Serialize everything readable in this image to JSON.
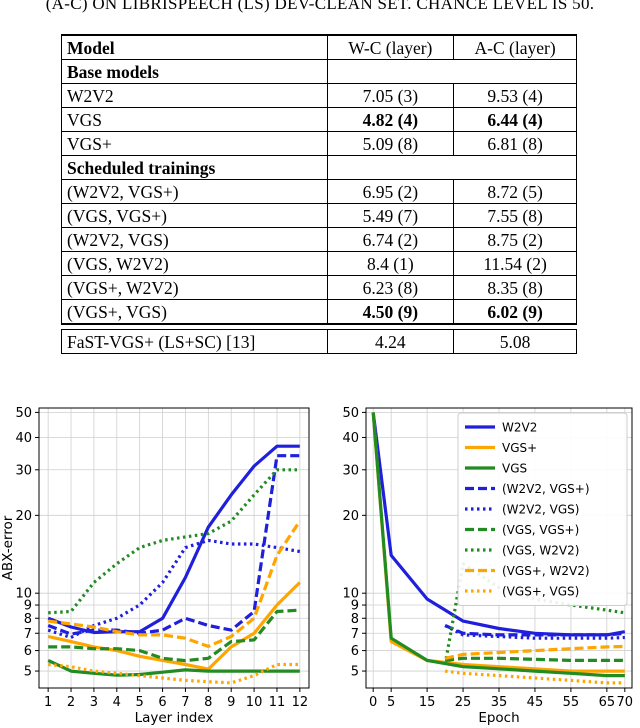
{
  "caption": "(A-C) ON LIBRISPEECH (LS) DEV-CLEAN SET. CHANCE LEVEL IS 50.",
  "table": {
    "headers": [
      "Model",
      "W-C (layer)",
      "A-C (layer)"
    ],
    "sections": [
      {
        "title": "Base models",
        "rows": [
          {
            "model": "W2V2",
            "wc": "7.05 (3)",
            "ac": "9.53 (4)",
            "bold": false
          },
          {
            "model": "VGS",
            "wc": "4.82 (4)",
            "ac": "6.44 (4)",
            "bold": true
          },
          {
            "model": "VGS+",
            "wc": "5.09 (8)",
            "ac": "6.81 (8)",
            "bold": false
          }
        ]
      },
      {
        "title": "Scheduled trainings",
        "rows": [
          {
            "model": "(W2V2, VGS+)",
            "wc": "6.95 (2)",
            "ac": "8.72 (5)",
            "bold": false
          },
          {
            "model": "(VGS, VGS+)",
            "wc": "5.49 (7)",
            "ac": "7.55 (8)",
            "bold": false
          },
          {
            "model": "(W2V2, VGS)",
            "wc": "6.74 (2)",
            "ac": "8.75 (2)",
            "bold": false
          },
          {
            "model": "(VGS, W2V2)",
            "wc": "8.4 (1)",
            "ac": "11.54 (2)",
            "bold": false
          },
          {
            "model": "(VGS+, W2V2)",
            "wc": "6.23 (8)",
            "ac": "8.35 (8)",
            "bold": false
          },
          {
            "model": "(VGS+, VGS)",
            "wc": "4.50 (9)",
            "ac": "6.02 (9)",
            "bold": true
          }
        ]
      }
    ],
    "reference": {
      "model": "FaST-VGS+ (LS+SC) [13]",
      "wc": "4.24",
      "ac": "5.08"
    }
  },
  "chart_data": [
    {
      "type": "line",
      "xlabel": "Layer index",
      "ylabel": "ABX-error",
      "scale_y": "log",
      "ylim": [
        4.3,
        52
      ],
      "xlim": [
        0.6,
        12.4
      ],
      "xticks": [
        "1",
        "2",
        "3",
        "4",
        "5",
        "6",
        "7",
        "8",
        "9",
        "10",
        "11",
        "12"
      ],
      "yticks": [
        "5",
        "6",
        "7",
        "8",
        "9",
        "10",
        "20",
        "30",
        "40",
        "50"
      ],
      "grid": true,
      "x": [
        1,
        2,
        3,
        4,
        5,
        6,
        7,
        8,
        9,
        10,
        11,
        12
      ],
      "series": [
        {
          "name": "W2V2",
          "color": "#1f1fdc",
          "dash": "solid",
          "values": [
            8.0,
            7.4,
            7.05,
            7.1,
            7.1,
            8.0,
            11.5,
            18.0,
            24.0,
            31.0,
            37.0,
            37.0
          ]
        },
        {
          "name": "VGS+",
          "color": "#ffa500",
          "dash": "solid",
          "values": [
            6.8,
            6.5,
            6.2,
            6.0,
            5.7,
            5.5,
            5.3,
            5.09,
            6.2,
            7.0,
            9.0,
            11.0
          ]
        },
        {
          "name": "VGS",
          "color": "#228b22",
          "dash": "solid",
          "values": [
            5.5,
            5.0,
            4.9,
            4.82,
            4.85,
            4.95,
            5.05,
            5.0,
            5.0,
            5.0,
            5.0,
            5.0
          ]
        },
        {
          "name": "(W2V2, VGS+)",
          "color": "#1f1fdc",
          "dash": "dash",
          "values": [
            7.5,
            6.95,
            7.2,
            7.2,
            7.0,
            7.2,
            8.0,
            7.5,
            7.2,
            8.5,
            34.0,
            34.0
          ]
        },
        {
          "name": "(W2V2, VGS)",
          "color": "#1f1fdc",
          "dash": "dot",
          "values": [
            7.2,
            6.74,
            7.5,
            8.0,
            9.0,
            11.0,
            15.0,
            16.0,
            15.5,
            15.5,
            15.0,
            14.5
          ]
        },
        {
          "name": "(VGS, VGS+)",
          "color": "#228b22",
          "dash": "dash",
          "values": [
            6.2,
            6.2,
            6.1,
            6.1,
            6.0,
            5.6,
            5.49,
            5.6,
            6.5,
            6.6,
            8.5,
            8.6
          ]
        },
        {
          "name": "(VGS, W2V2)",
          "color": "#228b22",
          "dash": "dot",
          "values": [
            8.4,
            8.5,
            11.0,
            13.0,
            15.0,
            16.0,
            16.5,
            17.0,
            19.0,
            24.0,
            30.0,
            30.0
          ]
        },
        {
          "name": "(VGS+, W2V2)",
          "color": "#ffa500",
          "dash": "dash",
          "values": [
            7.8,
            7.6,
            7.4,
            7.1,
            6.9,
            6.9,
            6.7,
            6.23,
            6.8,
            8.0,
            14.0,
            19.0
          ]
        },
        {
          "name": "(VGS+, VGS)",
          "color": "#ffa500",
          "dash": "dot",
          "values": [
            5.3,
            5.2,
            5.0,
            4.9,
            4.8,
            4.7,
            4.6,
            4.55,
            4.5,
            4.8,
            5.3,
            5.3
          ]
        }
      ]
    },
    {
      "type": "line",
      "xlabel": "Epoch",
      "scale_y": "log",
      "ylim": [
        4.3,
        52
      ],
      "xlim": [
        -2,
        72
      ],
      "xticks": [
        "0",
        "5",
        "15",
        "25",
        "35",
        "45",
        "55",
        "65",
        "70"
      ],
      "xtick_values": [
        0,
        5,
        15,
        25,
        35,
        45,
        55,
        65,
        70
      ],
      "yticks": [
        "5",
        "6",
        "7",
        "8",
        "9",
        "10",
        "20",
        "30",
        "40",
        "50"
      ],
      "grid": true,
      "legend_position": "top-right",
      "series": [
        {
          "name": "W2V2",
          "color": "#1f1fdc",
          "dash": "solid",
          "x": [
            0,
            5,
            15,
            25,
            35,
            45,
            55,
            65,
            70
          ],
          "values": [
            50,
            14,
            9.5,
            7.8,
            7.3,
            7.0,
            6.9,
            6.9,
            7.1
          ]
        },
        {
          "name": "VGS+",
          "color": "#ffa500",
          "dash": "solid",
          "x": [
            0,
            5,
            15,
            25,
            35,
            45,
            55,
            65,
            70
          ],
          "values": [
            50,
            6.5,
            5.5,
            5.3,
            5.2,
            5.1,
            5.0,
            5.0,
            5.0
          ]
        },
        {
          "name": "VGS",
          "color": "#228b22",
          "dash": "solid",
          "x": [
            0,
            5,
            15,
            25,
            35,
            45,
            55,
            65,
            70
          ],
          "values": [
            50,
            6.7,
            5.5,
            5.2,
            5.1,
            5.0,
            4.9,
            4.8,
            4.8
          ]
        },
        {
          "name": "(W2V2, VGS+)",
          "color": "#1f1fdc",
          "dash": "dash",
          "x": [
            20,
            25,
            35,
            45,
            55,
            65,
            70
          ],
          "values": [
            7.5,
            7.0,
            6.9,
            6.9,
            6.9,
            6.9,
            7.0
          ]
        },
        {
          "name": "(W2V2, VGS)",
          "color": "#1f1fdc",
          "dash": "dot",
          "x": [
            20,
            25,
            35,
            45,
            55,
            65,
            70
          ],
          "values": [
            7.5,
            6.9,
            6.8,
            6.7,
            6.7,
            6.7,
            6.74
          ]
        },
        {
          "name": "(VGS, VGS+)",
          "color": "#228b22",
          "dash": "dash",
          "x": [
            20,
            25,
            35,
            45,
            55,
            65,
            70
          ],
          "values": [
            5.5,
            5.6,
            5.6,
            5.55,
            5.5,
            5.5,
            5.5
          ]
        },
        {
          "name": "(VGS, W2V2)",
          "color": "#228b22",
          "dash": "dot",
          "x": [
            20,
            25,
            35,
            45,
            55,
            65,
            70
          ],
          "values": [
            5.3,
            13.0,
            10.5,
            9.5,
            9.0,
            8.6,
            8.4
          ]
        },
        {
          "name": "(VGS+, W2V2)",
          "color": "#ffa500",
          "dash": "dash",
          "x": [
            20,
            25,
            35,
            45,
            55,
            65,
            70
          ],
          "values": [
            5.6,
            5.8,
            5.9,
            6.0,
            6.1,
            6.2,
            6.23
          ]
        },
        {
          "name": "(VGS+, VGS)",
          "color": "#ffa500",
          "dash": "dot",
          "x": [
            20,
            25,
            35,
            45,
            55,
            65,
            70
          ],
          "values": [
            5.0,
            4.9,
            4.8,
            4.7,
            4.6,
            4.5,
            4.5
          ]
        }
      ]
    }
  ]
}
